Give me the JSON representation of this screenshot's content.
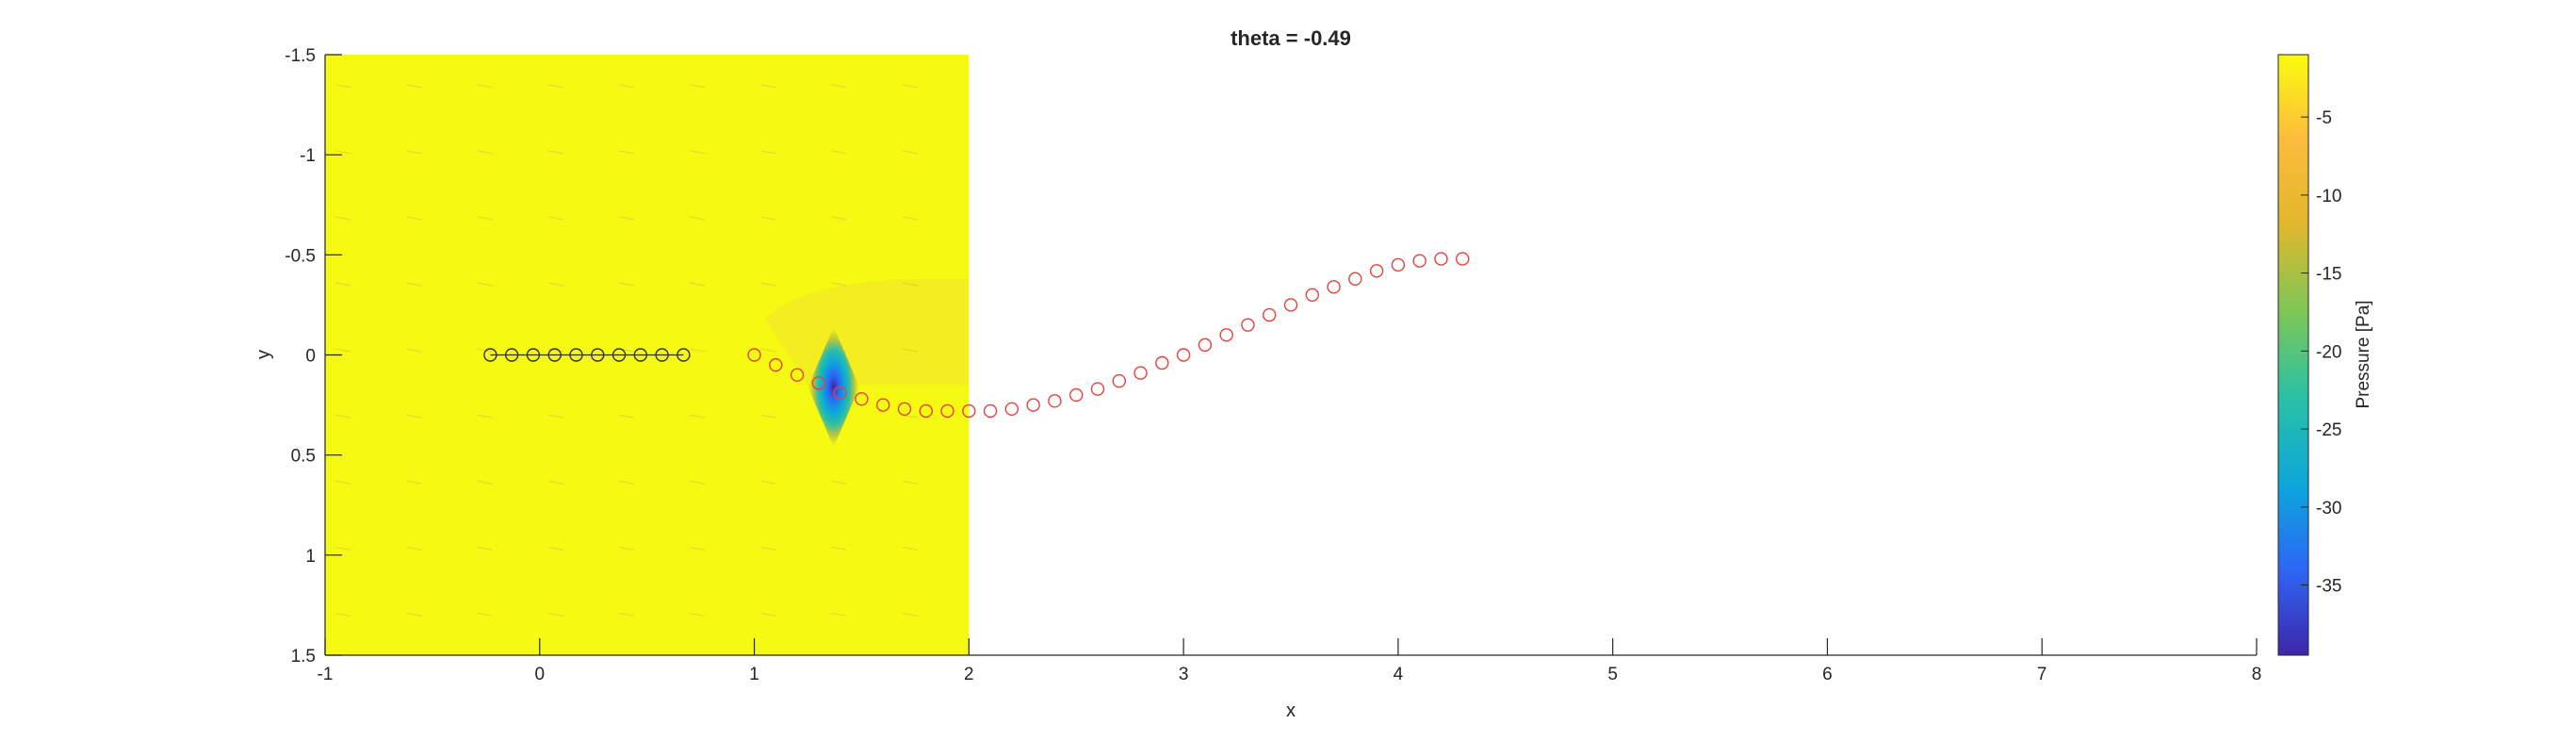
{
  "chart_data": {
    "type": "scatter",
    "title": "theta = -0.49",
    "xlabel": "x",
    "ylabel": "y",
    "xlim": [
      -1,
      8
    ],
    "ylim": [
      -1.5,
      1.5
    ],
    "y_axis_reversed": true,
    "grid": false,
    "xticks": [
      -1,
      0,
      1,
      2,
      3,
      4,
      5,
      6,
      7,
      8
    ],
    "yticks": [
      -1.5,
      -1,
      -0.5,
      0,
      0.5,
      1,
      1.5
    ],
    "pressure_field": {
      "x_range": [
        -1,
        2
      ],
      "y_range": [
        -1.5,
        1.5
      ],
      "background_value": -1,
      "low_pressure_center": {
        "x": 1.37,
        "y": 0.16,
        "value": -39
      },
      "low_pressure_half_width_x": 0.12,
      "low_pressure_half_height_y": 0.3
    },
    "colorbar": {
      "label": "Pressure [Pa]",
      "range": [
        -39.5,
        -1
      ],
      "ticks": [
        -5,
        -10,
        -15,
        -20,
        -25,
        -30,
        -35
      ],
      "colors": [
        "#3e26a8",
        "#2e65f5",
        "#0ca6dc",
        "#2ac0a6",
        "#7cc757",
        "#e2b72c",
        "#fdbb3d",
        "#f9fb0e"
      ]
    },
    "series": [
      {
        "marker": "circle",
        "color": "#333333",
        "line": true,
        "x": [
          -0.23,
          -0.13,
          -0.03,
          0.07,
          0.17,
          0.27,
          0.37,
          0.47,
          0.57,
          0.67
        ],
        "y": [
          0,
          0,
          0,
          0,
          0,
          0,
          0,
          0,
          0,
          0
        ]
      },
      {
        "marker": "circle",
        "color": "#e8413c",
        "line": false,
        "x": [
          1.0,
          1.1,
          1.2,
          1.3,
          1.4,
          1.5,
          1.6,
          1.7,
          1.8,
          1.9,
          2.0,
          2.1,
          2.2,
          2.3,
          2.4,
          2.5,
          2.6,
          2.7,
          2.8,
          2.9,
          3.0,
          3.1,
          3.2,
          3.3,
          3.4,
          3.5,
          3.6,
          3.7,
          3.8,
          3.9,
          4.0,
          4.1,
          4.2,
          4.3
        ],
        "y": [
          0.0,
          0.05,
          0.1,
          0.14,
          0.19,
          0.22,
          0.25,
          0.27,
          0.28,
          0.28,
          0.28,
          0.28,
          0.27,
          0.25,
          0.23,
          0.2,
          0.17,
          0.13,
          0.09,
          0.04,
          0.0,
          -0.05,
          -0.1,
          -0.15,
          -0.2,
          -0.25,
          -0.3,
          -0.34,
          -0.38,
          -0.42,
          -0.45,
          -0.47,
          -0.48,
          -0.48
        ]
      }
    ]
  }
}
